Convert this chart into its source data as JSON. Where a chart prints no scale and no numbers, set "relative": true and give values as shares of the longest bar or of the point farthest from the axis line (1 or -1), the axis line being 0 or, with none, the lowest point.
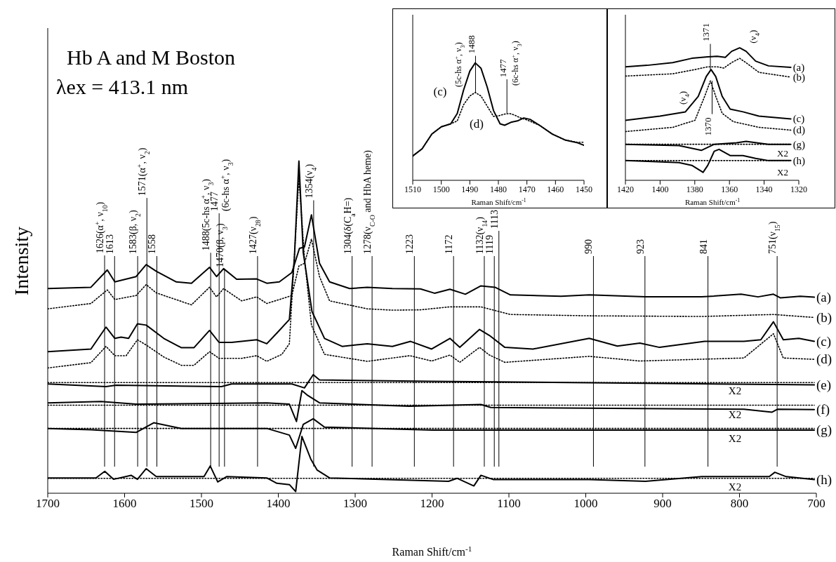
{
  "chart_data": [
    {
      "type": "line",
      "title": "Hb A and M Boston",
      "subtitle": "λex = 413.1 nm",
      "xlabel": "Raman Shift/cm$^{-1}$",
      "ylabel": "Intensity",
      "relative": true,
      "xlim": [
        1700,
        700
      ],
      "xticks": [
        1700,
        1600,
        1500,
        1400,
        1300,
        1200,
        1100,
        1000,
        900,
        800,
        700
      ],
      "series": [
        {
          "name": "(a)",
          "color": "#000000",
          "x": [
            1700,
            1643.8,
            1622.5,
            1612.7,
            1585,
            1571.9,
            1558.8,
            1532.7,
            1513,
            1489.5,
            1480.4,
            1471.2,
            1454.2,
            1428.1,
            1415,
            1398.7,
            1382.4,
            1372.5,
            1366,
            1356.9,
            1346.4,
            1333.3,
            1307.2,
            1284.3,
            1251.6,
            1215.1,
            1196.8,
            1176.7,
            1156.6,
            1136.4,
            1118.1,
            1098,
            1032.1,
            995.5,
            922.3,
            849.1,
            797.9,
            775.9,
            755.8,
            746.6,
            721,
            702.7
          ],
          "values": [
            0.616,
            0.62,
            0.672,
            0.636,
            0.652,
            0.688,
            0.668,
            0.636,
            0.632,
            0.68,
            0.652,
            0.676,
            0.644,
            0.645,
            0.632,
            0.636,
            0.664,
            0.737,
            0.741,
            0.838,
            0.692,
            0.636,
            0.616,
            0.62,
            0.616,
            0.615,
            0.602,
            0.614,
            0.599,
            0.624,
            0.62,
            0.597,
            0.593,
            0.597,
            0.591,
            0.591,
            0.599,
            0.591,
            0.599,
            0.588,
            0.593,
            0.59
          ]
        },
        {
          "name": "(b)",
          "color": "#000000",
          "line_style": "dotted",
          "x": [
            1700,
            1643.8,
            1622.5,
            1612.7,
            1585,
            1571.9,
            1558.8,
            1513,
            1489.5,
            1480.4,
            1471.2,
            1447.7,
            1428.1,
            1415,
            1382.4,
            1373.2,
            1366,
            1356.9,
            1346.4,
            1333.3,
            1284.3,
            1251.6,
            1215.1,
            1176.7,
            1136.4,
            1098,
            995.5,
            849.1,
            755.8,
            702.7
          ],
          "values": [
            0.555,
            0.571,
            0.612,
            0.583,
            0.595,
            0.628,
            0.603,
            0.567,
            0.62,
            0.591,
            0.616,
            0.579,
            0.591,
            0.571,
            0.595,
            0.684,
            0.692,
            0.765,
            0.652,
            0.579,
            0.555,
            0.551,
            0.552,
            0.561,
            0.561,
            0.538,
            0.534,
            0.532,
            0.538,
            0.529
          ]
        },
        {
          "name": "(c)",
          "color": "#000000",
          "x": [
            1700,
            1643.8,
            1624.2,
            1612.7,
            1604.6,
            1594.8,
            1583.3,
            1571.9,
            1549,
            1526.1,
            1509.8,
            1489.5,
            1477.1,
            1460.8,
            1428.1,
            1415,
            1401.9,
            1385.6,
            1379.1,
            1373.2,
            1367.6,
            1356.2,
            1339.9,
            1317,
            1284.3,
            1251.6,
            1227.9,
            1200.5,
            1176.7,
            1163.9,
            1138.2,
            1125.4,
            1105.3,
            1068.7,
            995.5,
            958.9,
            929.6,
            904,
            845.4,
            794.2,
            772.2,
            755.8,
            743,
            722.8,
            702.7
          ],
          "values": [
            0.426,
            0.434,
            0.5,
            0.466,
            0.47,
            0.466,
            0.51,
            0.506,
            0.466,
            0.438,
            0.438,
            0.49,
            0.454,
            0.454,
            0.462,
            0.45,
            0.482,
            0.523,
            0.708,
            1.0,
            0.725,
            0.547,
            0.466,
            0.442,
            0.45,
            0.442,
            0.457,
            0.434,
            0.466,
            0.439,
            0.493,
            0.475,
            0.439,
            0.434,
            0.466,
            0.443,
            0.452,
            0.439,
            0.457,
            0.457,
            0.462,
            0.516,
            0.462,
            0.466,
            0.457
          ]
        },
        {
          "name": "(d)",
          "color": "#000000",
          "line_style": "dotted",
          "x": [
            1700,
            1643.8,
            1624.2,
            1612.7,
            1598,
            1583.3,
            1571.9,
            1549,
            1526.1,
            1509.8,
            1489.5,
            1477.1,
            1447.7,
            1428.1,
            1415,
            1395.4,
            1385.6,
            1373.2,
            1366,
            1356.9,
            1339.9,
            1284.3,
            1228.8,
            1200.5,
            1176.7,
            1163.9,
            1138.2,
            1125.4,
            1105.3,
            995.5,
            929.6,
            794.2,
            755.8,
            743,
            702.7
          ],
          "values": [
            0.377,
            0.393,
            0.442,
            0.414,
            0.414,
            0.462,
            0.446,
            0.41,
            0.385,
            0.385,
            0.426,
            0.406,
            0.406,
            0.414,
            0.397,
            0.418,
            0.45,
            0.951,
            0.708,
            0.506,
            0.418,
            0.397,
            0.414,
            0.398,
            0.416,
            0.394,
            0.439,
            0.416,
            0.394,
            0.412,
            0.398,
            0.407,
            0.48,
            0.407,
            0.403
          ]
        },
        {
          "name": "(e)",
          "color": "#000000",
          "x": [
            1700,
            1624.2,
            1611.1,
            1473.9,
            1460.8,
            1382.4,
            1366,
            1354.6,
            1346.4,
            1199.4,
            702.7
          ],
          "values": [
            0.329,
            0.321,
            0.325,
            0.321,
            0.329,
            0.329,
            0.317,
            0.357,
            0.341,
            0.337,
            0.326
          ]
        },
        {
          "name": "(f)",
          "color": "#000000",
          "x": [
            1700,
            1630.7,
            1585,
            1415,
            1385.6,
            1376.4,
            1369.3,
            1362.7,
            1346.4,
            1229.7,
            1136.4,
            1123.6,
            794.2,
            757.6,
            750.3,
            702.7
          ],
          "values": [
            0.272,
            0.276,
            0.268,
            0.272,
            0.268,
            0.216,
            0.309,
            0.296,
            0.272,
            0.262,
            0.267,
            0.258,
            0.253,
            0.244,
            0.253,
            0.252
          ]
        },
        {
          "name": "(g)",
          "color": "#000000",
          "x": [
            1700,
            1643.8,
            1585,
            1562.1,
            1526.1,
            1415,
            1385.6,
            1377.4,
            1367.6,
            1354.6,
            1339.9,
            1199.4,
            702.7
          ],
          "values": [
            0.195,
            0.191,
            0.183,
            0.212,
            0.195,
            0.195,
            0.175,
            0.135,
            0.207,
            0.224,
            0.199,
            0.19,
            0.19
          ]
        },
        {
          "name": "(h)",
          "color": "#000000",
          "x": [
            1700,
            1637.3,
            1625.8,
            1614.4,
            1591.5,
            1583.3,
            1571.9,
            1558.8,
            1496.7,
            1488.6,
            1478.8,
            1467.3,
            1415,
            1401.9,
            1385.6,
            1377.4,
            1369.3,
            1357.8,
            1349.6,
            1333.3,
            1178.5,
            1167.5,
            1145.6,
            1136.4,
            1119.9,
            995.5,
            922.3,
            849.1,
            761.3,
            754,
            739.3,
            702.7
          ],
          "values": [
            0.046,
            0.046,
            0.066,
            0.042,
            0.054,
            0.042,
            0.074,
            0.05,
            0.05,
            0.082,
            0.034,
            0.05,
            0.046,
            0.03,
            0.026,
            0.005,
            0.171,
            0.103,
            0.07,
            0.046,
            0.036,
            0.045,
            0.022,
            0.054,
            0.041,
            0.041,
            0.036,
            0.05,
            0.05,
            0.063,
            0.05,
            0.041
          ]
        },
        {
          "color": "#000000",
          "line_style": "dotted",
          "x": [
            1700,
            702.7
          ],
          "values": [
            0.333,
            0.333
          ]
        },
        {
          "color": "#000000",
          "line_style": "dotted",
          "x": [
            1700,
            702.7
          ],
          "values": [
            0.265,
            0.265
          ]
        },
        {
          "color": "#000000",
          "line_style": "dotted",
          "x": [
            1700,
            702.7
          ],
          "values": [
            0.195,
            0.195
          ]
        },
        {
          "color": "#000000",
          "line_style": "dotted",
          "x": [
            1700,
            702.7
          ],
          "values": [
            0.045,
            0.045
          ]
        }
      ],
      "ref_lines": [
        {
          "axis": "x",
          "value": 1626,
          "label": "1626(α$^{+}$, ν$_{10}$)"
        },
        {
          "axis": "x",
          "value": 1613,
          "label": "1613"
        },
        {
          "axis": "x",
          "value": 1583,
          "label": "1583(β, ν$_{2}$)"
        },
        {
          "axis": "x",
          "value": 1571,
          "label": "1571(α$^{+}$, ν$_{2}$)"
        },
        {
          "axis": "x",
          "value": 1558,
          "label": "1558"
        },
        {
          "axis": "x",
          "value": 1488,
          "label": "1488(5c-hs α$^{+}$, ν$_{3}$)"
        },
        {
          "axis": "x",
          "value": 1477,
          "label": "1477(6c-hs α$^{+}$, ν$_{3}$)"
        },
        {
          "axis": "x",
          "value": 1470,
          "label": "1470(β, ν$_{3}$)"
        },
        {
          "axis": "x",
          "value": 1427,
          "label": "1427(ν$_{28}$)"
        },
        {
          "axis": "x",
          "value": 1354,
          "label": "1354(ν$_{4}$)"
        },
        {
          "axis": "x",
          "value": 1304,
          "label": "1304(δ(C$_{a}$H=)"
        },
        {
          "axis": "x",
          "value": 1278,
          "label": "1278(ν$_{C-O}$ and HbA heme)"
        },
        {
          "axis": "x",
          "value": 1223,
          "label": "1223"
        },
        {
          "axis": "x",
          "value": 1172,
          "label": "1172"
        },
        {
          "axis": "x",
          "value": 1132,
          "label": "1132(ν$_{14}$)"
        },
        {
          "axis": "x",
          "value": 1119,
          "label": "1119"
        },
        {
          "axis": "x",
          "value": 1113,
          "label": "1113"
        },
        {
          "axis": "x",
          "value": 990,
          "label": "990"
        },
        {
          "axis": "x",
          "value": 923,
          "label": "923"
        },
        {
          "axis": "x",
          "value": 841,
          "label": "841"
        },
        {
          "axis": "x",
          "value": 751,
          "label": "751(ν$_{15}$)"
        }
      ],
      "annotations": [
        "X2",
        "X2",
        "X2",
        "X2"
      ]
    },
    {
      "type": "line",
      "xlabel": "Raman Shift/cm$^{-1}$",
      "relative": true,
      "xlim": [
        1510,
        1450
      ],
      "xticks": [
        1510,
        1500,
        1490,
        1480,
        1470,
        1460,
        1450
      ],
      "series": [
        {
          "name": "(c)",
          "color": "#000000",
          "x": [
            1510,
            1506.7,
            1503.3,
            1500,
            1496.7,
            1494.4,
            1492.2,
            1490,
            1488.1,
            1486.1,
            1483.9,
            1481.7,
            1479.4,
            1477.8,
            1475.6,
            1473.3,
            1471.1,
            1468.9,
            1465.6,
            1461.1,
            1456.7,
            1452.2,
            1450
          ],
          "values": [
            0.207,
            0.269,
            0.394,
            0.456,
            0.481,
            0.569,
            0.768,
            0.93,
            1.0,
            0.955,
            0.793,
            0.594,
            0.481,
            0.469,
            0.494,
            0.506,
            0.531,
            0.519,
            0.469,
            0.394,
            0.344,
            0.319,
            0.299
          ]
        },
        {
          "name": "(d)",
          "color": "#000000",
          "line_style": "dotted",
          "x": [
            1510,
            1506.7,
            1503.3,
            1500,
            1496.7,
            1494.4,
            1492.2,
            1490,
            1488.1,
            1486.1,
            1483.9,
            1481.7,
            1480,
            1477.8,
            1476.1,
            1474.4,
            1472.2,
            1470,
            1465.6,
            1461.1,
            1456.7,
            1452.2,
            1450
          ],
          "values": [
            0.207,
            0.269,
            0.394,
            0.456,
            0.481,
            0.506,
            0.643,
            0.718,
            0.748,
            0.718,
            0.631,
            0.544,
            0.549,
            0.564,
            0.569,
            0.556,
            0.531,
            0.514,
            0.469,
            0.394,
            0.344,
            0.324,
            0.324
          ]
        }
      ],
      "ref_lines": [
        {
          "axis": "x",
          "value": 1488,
          "label": "1488"
        },
        {
          "axis": "x",
          "value": 1477,
          "label": "1477"
        }
      ],
      "annotations": [
        "(5c-hs α$^{+}$, ν$_{3}$)",
        "(6c-hs α$^{+}$, ν$_{3}$)"
      ]
    },
    {
      "type": "line",
      "xlabel": "Raman Shift/cm$^{-1}$",
      "relative": true,
      "xlim": [
        1420,
        1320
      ],
      "xticks": [
        1420,
        1400,
        1380,
        1360,
        1340,
        1320
      ],
      "series": [
        {
          "name": "(a)",
          "color": "#000000",
          "x": [
            1420,
            1407.5,
            1392.7,
            1381.7,
            1372.5,
            1367,
            1362.4,
            1358.7,
            1354.1,
            1350.4,
            1344.9,
            1337.5,
            1324.6
          ],
          "values": [
            0.857,
            0.868,
            0.889,
            0.921,
            0.932,
            0.936,
            0.928,
            0.974,
            1.0,
            0.974,
            0.9,
            0.864,
            0.853
          ]
        },
        {
          "name": "(b)",
          "color": "#000000",
          "line_style": "dotted",
          "x": [
            1420,
            1392.7,
            1379.9,
            1372.5,
            1367,
            1363.3,
            1358.7,
            1354.1,
            1349.5,
            1343,
            1324.6
          ],
          "values": [
            0.787,
            0.804,
            0.836,
            0.857,
            0.857,
            0.847,
            0.889,
            0.921,
            0.879,
            0.815,
            0.779
          ]
        },
        {
          "name": "(c)",
          "color": "#000000",
          "x": [
            1420,
            1400.1,
            1385.4,
            1378,
            1373.4,
            1370.6,
            1367.9,
            1364.2,
            1359.6,
            1352.2,
            1343,
            1324.6
          ],
          "values": [
            0.453,
            0.485,
            0.517,
            0.634,
            0.783,
            0.836,
            0.783,
            0.634,
            0.538,
            0.517,
            0.485,
            0.464
          ]
        },
        {
          "name": "(d)",
          "color": "#000000",
          "line_style": "dotted",
          "x": [
            1420,
            1392.7,
            1379.9,
            1374.3,
            1371,
            1367.9,
            1364.2,
            1357.8,
            1343,
            1324.6
          ],
          "values": [
            0.368,
            0.4,
            0.453,
            0.634,
            0.751,
            0.634,
            0.506,
            0.443,
            0.4,
            0.379
          ]
        },
        {
          "name": "(g)",
          "color": "#000000",
          "x": [
            1420,
            1389.1,
            1376.2,
            1368.8,
            1355.9,
            1350.4,
            1337.5,
            1324.6
          ],
          "values": [
            0.272,
            0.262,
            0.226,
            0.272,
            0.283,
            0.294,
            0.272,
            0.272
          ]
        },
        {
          "name": "(h)",
          "color": "#000000",
          "x": [
            1420,
            1389.1,
            1381.7,
            1375.2,
            1372.5,
            1368.8,
            1366,
            1359.6,
            1352.2,
            1344.9,
            1337.5,
            1324.6
          ],
          "values": [
            0.149,
            0.134,
            0.113,
            0.06,
            0.113,
            0.219,
            0.234,
            0.187,
            0.187,
            0.166,
            0.149,
            0.149
          ]
        },
        {
          "color": "#000000",
          "line_style": "dotted",
          "x": [
            1420,
            1324.6
          ],
          "values": [
            0.272,
            0.272
          ]
        },
        {
          "color": "#000000",
          "line_style": "dotted",
          "x": [
            1420,
            1324.6
          ],
          "values": [
            0.149,
            0.149
          ]
        }
      ],
      "ref_lines": [
        {
          "axis": "x",
          "value": 1371,
          "label": "1371"
        },
        {
          "axis": "x",
          "value": 1370,
          "label": "1370"
        }
      ],
      "annotations": [
        {
          "text": "(ν$_{4}$)",
          "x": 1354,
          "y": 1.0
        },
        "(ν$_{4}$)",
        "X2",
        "X2"
      ]
    }
  ]
}
